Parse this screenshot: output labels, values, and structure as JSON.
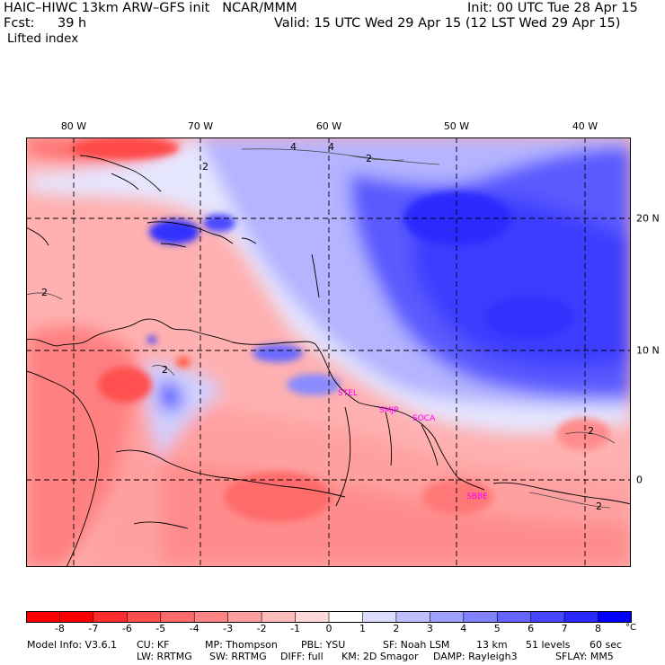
{
  "header": {
    "title": "HAIC–HIWC 13km ARW–GFS init   NCAR/MMM",
    "init": "Init: 00 UTC Tue 28 Apr 15",
    "fcst_label": "Fcst:",
    "fcst_value": "39 h",
    "valid": "Valid: 15 UTC Wed 29 Apr 15 (12 LST Wed 29 Apr 15)",
    "field": "Lifted index"
  },
  "lon_labels": [
    "80 W",
    "70 W",
    "60 W",
    "50 W",
    "40 W"
  ],
  "lat_labels": [
    "20 N",
    "10 N",
    "0"
  ],
  "stations": [
    "STEL",
    "SMJP",
    "SOCA",
    "SBBE"
  ],
  "contour_labels": [
    "4",
    "2",
    "2",
    "2",
    "2",
    "2",
    "4",
    "2"
  ],
  "colorbar": {
    "ticks": [
      "-8",
      "-7",
      "-6",
      "-5",
      "-4",
      "-3",
      "-2",
      "-1",
      "0",
      "1",
      "2",
      "3",
      "4",
      "5",
      "6",
      "7",
      "8"
    ],
    "unit": "°C",
    "colors": [
      "#ff0000",
      "#ff2d2d",
      "#ff4e4e",
      "#ff6a6a",
      "#ff8585",
      "#ffa0a0",
      "#ffbcbc",
      "#ffd8d8",
      "#ffffff",
      "#dcdcff",
      "#bebeff",
      "#a0a0ff",
      "#8282ff",
      "#6464ff",
      "#4646ff",
      "#2828ff",
      "#0000ff"
    ]
  },
  "model_info": {
    "line1": [
      "Model Info: V3.6.1",
      "CU: KF",
      "MP: Thompson",
      "PBL: YSU",
      "SF: Noah LSM",
      "13 km",
      "51 levels",
      "60 sec"
    ],
    "line2": [
      "LW: RRTMG",
      "SW: RRTMG",
      "DIFF: full",
      "KM: 2D Smagor",
      "DAMP: Rayleigh3",
      "SFLAY: MM5"
    ]
  }
}
